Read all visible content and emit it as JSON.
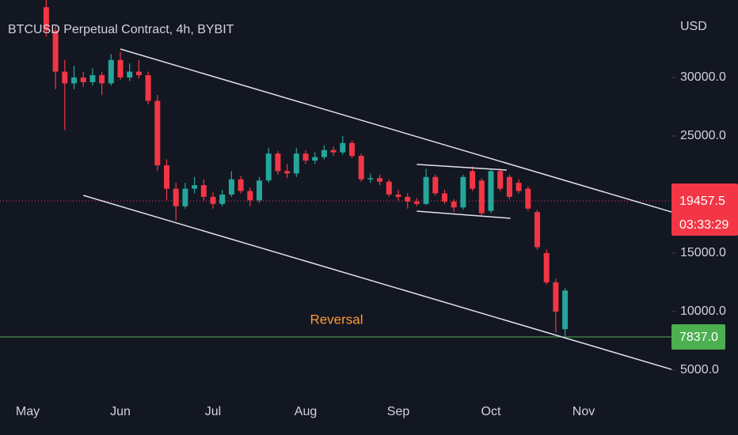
{
  "chart_data": {
    "type": "candlestick",
    "title": "BTCUSD Perpetual Contract, 4h, BYBIT",
    "y_unit": "USD",
    "categories": [
      "May",
      null,
      null,
      null,
      null,
      null,
      null,
      null,
      null,
      null,
      "Jun",
      null,
      null,
      null,
      null,
      null,
      null,
      null,
      null,
      null,
      "Jul",
      null,
      null,
      null,
      null,
      null,
      null,
      null,
      null,
      null,
      "Aug",
      null,
      null,
      null,
      null,
      null,
      null,
      null,
      null,
      null,
      "Sep",
      null,
      null,
      null,
      null,
      null,
      null,
      null,
      null,
      null,
      "Oct",
      null,
      null,
      null,
      null,
      null,
      null,
      null,
      null,
      null,
      "Nov",
      null,
      null,
      null,
      null,
      null,
      null,
      null,
      null,
      null
    ],
    "ohlc": {
      "open": [
        null,
        null,
        36000,
        34000,
        30500,
        29500,
        30000,
        29600,
        30200,
        29500,
        31500,
        30000,
        30500,
        30200,
        28000,
        22500,
        20500,
        19000,
        20500,
        20800,
        19800,
        19200,
        20000,
        21300,
        20300,
        19500,
        21200,
        23500,
        22000,
        21800,
        23500,
        22900,
        23200,
        23800,
        23600,
        24400,
        23300,
        21300,
        21400,
        21100,
        20000,
        19800,
        19400,
        19200,
        21500,
        20100,
        19400,
        18900,
        22000,
        21200,
        18600,
        22000,
        21500,
        21000,
        20500,
        18500,
        15000,
        12500,
        8500,
        null,
        null,
        null,
        null,
        null,
        null,
        null,
        null,
        null,
        null,
        null
      ],
      "high": [
        null,
        null,
        37500,
        34500,
        31500,
        31000,
        30500,
        30800,
        30500,
        32000,
        32200,
        31200,
        31500,
        30500,
        28500,
        23000,
        21000,
        21000,
        21500,
        21300,
        20200,
        20400,
        22000,
        21600,
        20600,
        21500,
        24000,
        23700,
        22600,
        24000,
        23800,
        23600,
        24200,
        24100,
        25000,
        24600,
        23500,
        21800,
        21700,
        21300,
        20400,
        20100,
        19700,
        22200,
        21700,
        20400,
        19600,
        21700,
        22400,
        21400,
        22200,
        22200,
        21700,
        21300,
        20700,
        18700,
        15300,
        12800,
        12000,
        null,
        null,
        null,
        null,
        null,
        null,
        null,
        null,
        null,
        null,
        null
      ],
      "low": [
        null,
        null,
        33500,
        29000,
        25500,
        29000,
        29200,
        29300,
        28500,
        29300,
        29800,
        29700,
        29900,
        27700,
        22000,
        19500,
        17800,
        18800,
        20100,
        19500,
        18800,
        19000,
        19800,
        20100,
        19000,
        19300,
        21000,
        21700,
        21400,
        21500,
        22600,
        22600,
        23000,
        23300,
        23400,
        23100,
        21100,
        21000,
        20800,
        19800,
        19500,
        18800,
        19000,
        19100,
        19900,
        19200,
        18500,
        18700,
        20300,
        18200,
        18400,
        20300,
        19600,
        20100,
        18600,
        15300,
        12300,
        8200,
        7900,
        null,
        null,
        null,
        null,
        null,
        null,
        null,
        null,
        null,
        null,
        null
      ],
      "close": [
        null,
        null,
        34000,
        30500,
        29500,
        30000,
        29600,
        30200,
        29500,
        31500,
        30000,
        30500,
        30200,
        28000,
        22500,
        20500,
        19000,
        20500,
        20800,
        19800,
        19200,
        20000,
        21300,
        20300,
        19500,
        21200,
        23500,
        22000,
        21800,
        23500,
        22900,
        23200,
        23800,
        23600,
        24400,
        23300,
        21300,
        21400,
        21100,
        20000,
        19800,
        19400,
        19200,
        21500,
        20100,
        19400,
        18900,
        21500,
        20500,
        18400,
        22000,
        20500,
        19800,
        20300,
        18800,
        15500,
        12500,
        10000,
        11800,
        null,
        null,
        null,
        null,
        null,
        null,
        null,
        null,
        null,
        null,
        null
      ]
    },
    "up_color": "#26a69a",
    "down_color": "#f23645",
    "ylim": [
      2294,
      36620
    ],
    "yticks": [
      {
        "value": 5000,
        "label": "5000.0"
      },
      {
        "value": 10000,
        "label": "10000.0"
      },
      {
        "value": 15000,
        "label": "15000.0"
      },
      {
        "value": 25000,
        "label": "25000.0"
      },
      {
        "value": 30000,
        "label": "30000.0"
      }
    ],
    "trendlines": [
      {
        "x": [
          10,
          69.5
        ],
        "y": [
          32430,
          18510
        ],
        "color": "#e0e3eb"
      },
      {
        "x": [
          6,
          69.5
        ],
        "y": [
          19930,
          5060
        ],
        "color": "#e0e3eb"
      },
      {
        "x": [
          42,
          51.7
        ],
        "y": [
          22570,
          22090
        ],
        "color": "#e0e3eb"
      },
      {
        "x": [
          42,
          52.1
        ],
        "y": [
          18580,
          17970
        ],
        "color": "#e0e3eb"
      }
    ],
    "current_price": 19457.5,
    "countdown": "03:33:29",
    "price_color": "#f23645",
    "level": {
      "value": 7837,
      "label": "7837.0",
      "color": "#4caf50"
    },
    "annotation": {
      "text": "Reversal",
      "color": "#ff9a3c"
    },
    "grid": false
  }
}
